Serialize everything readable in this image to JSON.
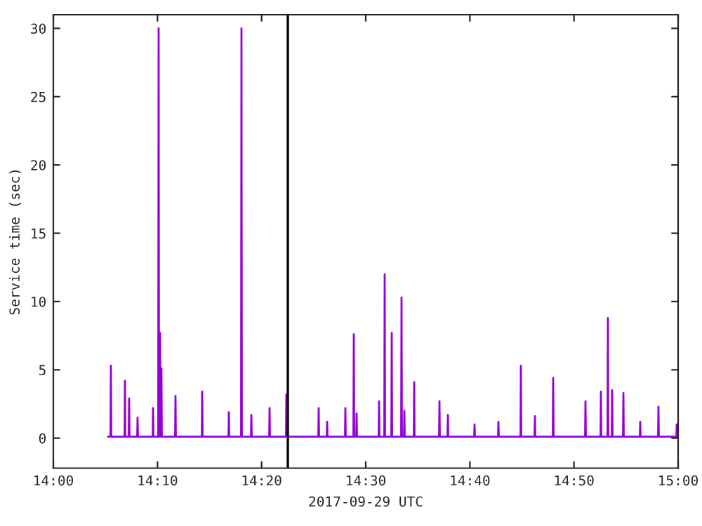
{
  "chart_data": {
    "type": "line",
    "xlabel": "2017-09-29 UTC",
    "ylabel": "Service time (sec)",
    "xlim": [
      14,
      15
    ],
    "ylim": [
      -2.2,
      31
    ],
    "xticks": [
      {
        "value": 14,
        "label": "14:00"
      },
      {
        "value": 14.1667,
        "label": "14:10"
      },
      {
        "value": 14.3333,
        "label": "14:20"
      },
      {
        "value": 14.5,
        "label": "14:30"
      },
      {
        "value": 14.6667,
        "label": "14:40"
      },
      {
        "value": 14.8333,
        "label": "14:50"
      },
      {
        "value": 15,
        "label": "15:00"
      }
    ],
    "yticks": [
      0,
      5,
      10,
      15,
      20,
      25,
      30
    ],
    "grid": false,
    "legend": false,
    "line_style": "solid",
    "marker": "none",
    "ref_lines": [
      {
        "axis": "x",
        "value": 14.3753,
        "color": "#000000"
      }
    ],
    "series": [
      {
        "color": "#9400d3",
        "x": [
          14.0876,
          14.0915,
          14.0921,
          14.0927,
          14.114,
          14.1146,
          14.1152,
          14.1207,
          14.1213,
          14.1219,
          14.1342,
          14.1348,
          14.1354,
          14.159,
          14.1596,
          14.1602,
          14.1679,
          14.1685,
          14.1691,
          14.1708,
          14.1714,
          14.173,
          14.1736,
          14.1949,
          14.1955,
          14.1961,
          14.2376,
          14.2382,
          14.2388,
          14.2803,
          14.2809,
          14.2815,
          14.3005,
          14.3011,
          14.3017,
          14.3163,
          14.3169,
          14.3175,
          14.3455,
          14.3461,
          14.3467,
          14.3724,
          14.373,
          14.3736,
          14.4241,
          14.4247,
          14.4253,
          14.4376,
          14.4382,
          14.4388,
          14.4668,
          14.4674,
          14.468,
          14.4803,
          14.4809,
          14.4815,
          14.4848,
          14.4854,
          14.486,
          14.5207,
          14.5213,
          14.5219,
          14.5297,
          14.5303,
          14.5309,
          14.541,
          14.5416,
          14.5422,
          14.5567,
          14.5573,
          14.5579,
          14.5612,
          14.5618,
          14.5624,
          14.5769,
          14.5775,
          14.5781,
          14.6174,
          14.618,
          14.6186,
          14.6309,
          14.6315,
          14.6321,
          14.6736,
          14.6742,
          14.6748,
          14.7118,
          14.7124,
          14.713,
          14.7477,
          14.7483,
          14.7489,
          14.7702,
          14.7708,
          14.7714,
          14.7994,
          14.8,
          14.8006,
          14.8511,
          14.8517,
          14.8523,
          14.8758,
          14.8764,
          14.877,
          14.887,
          14.8876,
          14.8882,
          14.8938,
          14.8944,
          14.895,
          14.9118,
          14.9124,
          14.913,
          14.9387,
          14.9393,
          14.9399,
          14.9679,
          14.9685,
          14.9691,
          14.9972,
          14.9978,
          14.999
        ],
        "values": [
          0.1,
          0.1,
          5.3,
          0.1,
          0.1,
          4.2,
          0.1,
          0.1,
          2.9,
          0.1,
          0.1,
          1.5,
          0.1,
          0.1,
          2.2,
          0.1,
          0.1,
          30,
          0.1,
          7.7,
          0.1,
          5.1,
          0.1,
          0.1,
          3.1,
          0.1,
          0.1,
          3.4,
          0.1,
          0.1,
          1.9,
          0.1,
          0.1,
          30,
          0.1,
          0.1,
          1.7,
          0.1,
          0.1,
          2.2,
          0.1,
          0.1,
          3.2,
          0.1,
          0.1,
          2.2,
          0.1,
          0.1,
          1.2,
          0.1,
          0.1,
          2.2,
          0.1,
          0.1,
          7.6,
          0.1,
          0.1,
          1.8,
          0.1,
          0.1,
          2.7,
          0.1,
          0.1,
          12.0,
          0.1,
          0.1,
          7.7,
          0.1,
          0.1,
          10.3,
          0.1,
          0.1,
          2.0,
          0.1,
          0.1,
          4.1,
          0.1,
          0.1,
          2.7,
          0.1,
          0.1,
          1.7,
          0.1,
          0.1,
          1.0,
          0.1,
          0.1,
          1.2,
          0.1,
          0.1,
          5.3,
          0.1,
          0.1,
          1.6,
          0.1,
          0.1,
          4.4,
          0.1,
          0.1,
          2.7,
          0.1,
          0.1,
          3.4,
          0.1,
          0.1,
          8.8,
          0.1,
          0.1,
          3.5,
          0.1,
          0.1,
          3.3,
          0.1,
          0.1,
          1.2,
          0.1,
          0.1,
          2.3,
          0.1,
          0.1,
          1.0,
          0.1
        ]
      }
    ]
  }
}
